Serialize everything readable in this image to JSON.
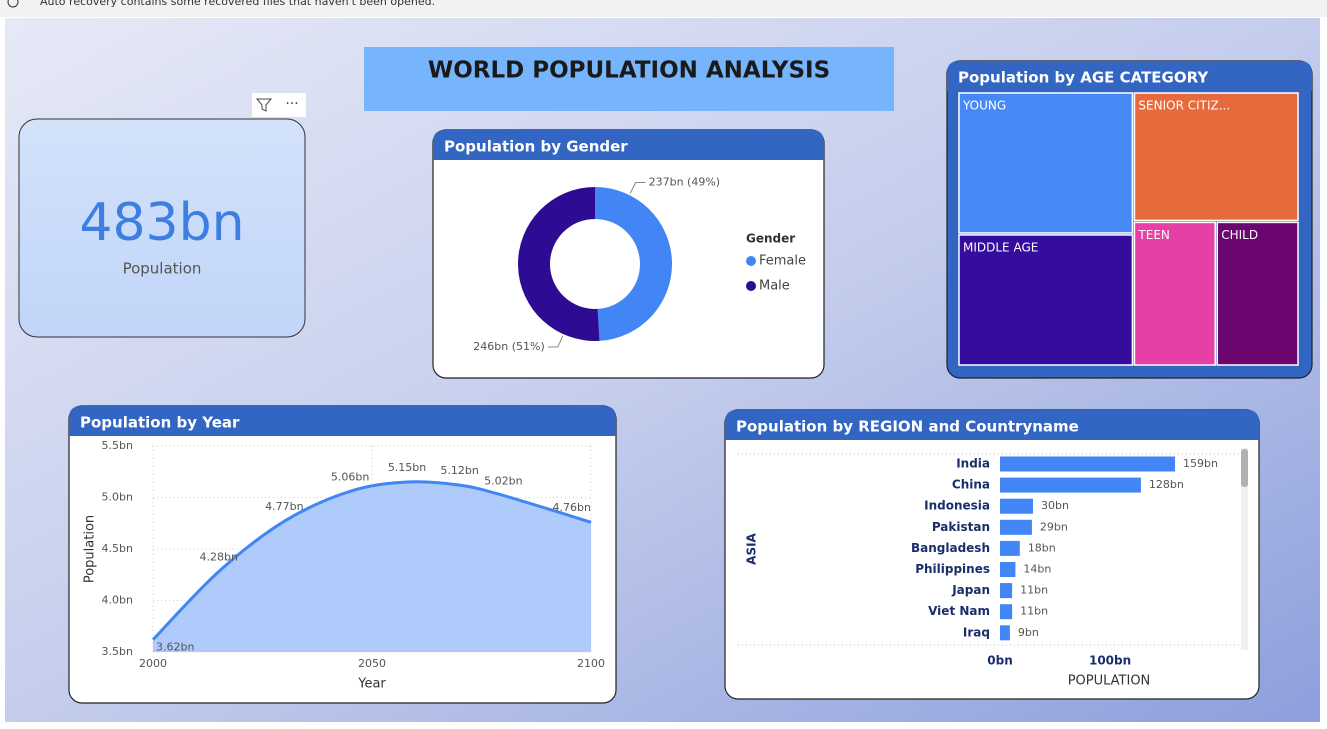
{
  "banner": "Auto recovery contains some recovered files that haven't been opened.",
  "title": "WORLD POPULATION ANALYSIS",
  "card": {
    "value": "483bn",
    "label": "Population"
  },
  "chart_data": [
    {
      "type": "pie",
      "title": "Population by Gender",
      "legend_title": "Gender",
      "donut": true,
      "categories": [
        "Female",
        "Male"
      ],
      "values": [
        237,
        246
      ],
      "value_labels": [
        "237bn (49%)",
        "246bn (51%)"
      ],
      "colors": [
        "#4285f4",
        "#2d0c93"
      ]
    },
    {
      "type": "treemap",
      "title": "Population by AGE CATEGORY",
      "categories": [
        "YOUNG",
        "MIDDLE AGE",
        "SENIOR CITIZ...",
        "TEEN",
        "CHILD"
      ],
      "values": [
        129,
        120,
        111,
        62,
        62
      ],
      "colors": [
        "#4688f5",
        "#350c9e",
        "#e66a3c",
        "#e63fa5",
        "#6b0670"
      ]
    },
    {
      "type": "area",
      "title": "Population by Year",
      "x": [
        2000,
        2015,
        2030,
        2045,
        2058,
        2070,
        2080,
        2100
      ],
      "values": [
        3.62,
        4.28,
        4.77,
        5.06,
        5.15,
        5.12,
        5.02,
        4.76
      ],
      "value_labels": [
        "3.62bn",
        "4.28bn",
        "4.77bn",
        "5.06bn",
        "5.15bn",
        "5.12bn",
        "5.02bn",
        "4.76bn"
      ],
      "xlim": [
        2000,
        2100
      ],
      "ylim": [
        3.5,
        5.5
      ],
      "xticks": [
        2000,
        2050,
        2100
      ],
      "yticks": [
        {
          "value": 3.5,
          "label": "3.5bn"
        },
        {
          "value": 4.0,
          "label": "4.0bn"
        },
        {
          "value": 4.5,
          "label": "4.5bn"
        },
        {
          "value": 5.0,
          "label": "5.0bn"
        },
        {
          "value": 5.5,
          "label": "5.5bn"
        }
      ],
      "xlabel": "Year",
      "ylabel": "Population",
      "color": "#4285f4",
      "fill": "#aecbfb",
      "grid": true
    },
    {
      "type": "bar",
      "horizontal": true,
      "title": "Population by REGION and Countryname",
      "group": "ASIA",
      "categories": [
        "India",
        "China",
        "Indonesia",
        "Pakistan",
        "Bangladesh",
        "Philippines",
        "Japan",
        "Viet Nam",
        "Iraq"
      ],
      "values": [
        159,
        128,
        30,
        29,
        18,
        14,
        11,
        11,
        9
      ],
      "value_labels": [
        "159bn",
        "128bn",
        "30bn",
        "29bn",
        "18bn",
        "14bn",
        "11bn",
        "11bn",
        "9bn"
      ],
      "xlim": [
        0,
        218
      ],
      "xticks": [
        {
          "value": 0,
          "label": "0bn"
        },
        {
          "value": 100,
          "label": "100bn"
        }
      ],
      "xlabel": "POPULATION",
      "color": "#4285f4"
    }
  ]
}
